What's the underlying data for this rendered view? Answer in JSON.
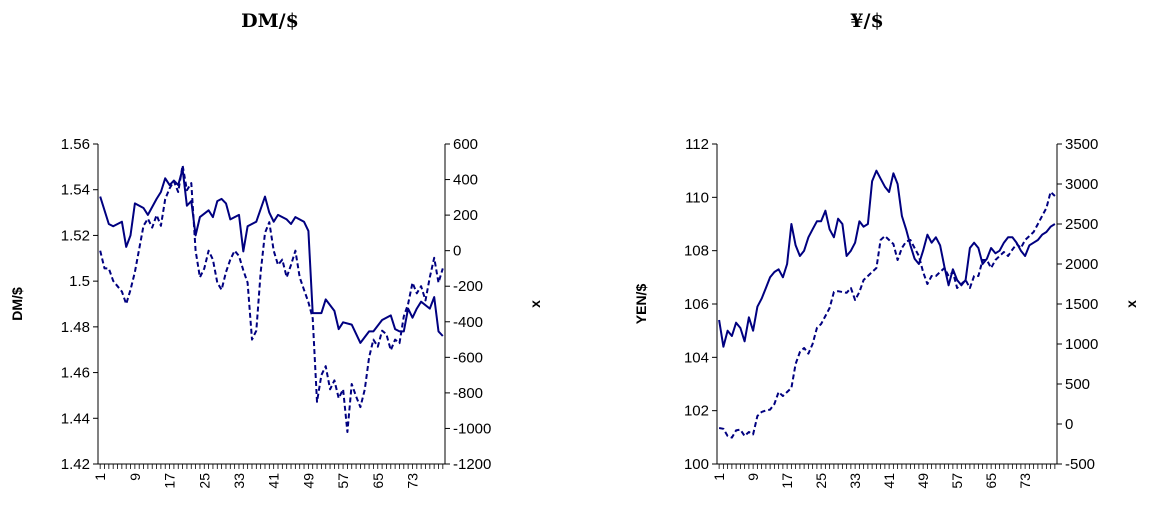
{
  "chart_data": [
    {
      "type": "line",
      "title": "DM/$",
      "ylabel": "DM/$",
      "y2label": "x",
      "xlabel": "",
      "x_ticks": [
        "1",
        "9",
        "17",
        "25",
        "33",
        "41",
        "49",
        "57",
        "65",
        "73"
      ],
      "y_ticks": [
        "1.56",
        "1.54",
        "1.52",
        "1.5",
        "1.48",
        "1.46",
        "1.44",
        "1.42"
      ],
      "y2_ticks": [
        "600",
        "400",
        "200",
        "0",
        "-200",
        "-400",
        "-600",
        "-800",
        "-1000",
        "-1200"
      ],
      "ylim": [
        1.42,
        1.56
      ],
      "y2lim": [
        -1200,
        600
      ],
      "xlim": [
        1,
        80
      ],
      "grid": false,
      "series": [
        {
          "axis": "left",
          "style": "solid",
          "color": "#000080",
          "x": [
            1,
            3,
            4,
            6,
            7,
            8,
            9,
            11,
            12,
            14,
            15,
            16,
            17,
            18,
            19,
            20,
            21,
            22,
            23,
            24,
            26,
            27,
            28,
            29,
            30,
            31,
            33,
            34,
            35,
            37,
            39,
            40,
            41,
            42,
            44,
            45,
            46,
            48,
            49,
            50,
            52,
            53,
            55,
            56,
            57,
            59,
            61,
            63,
            64,
            66,
            68,
            69,
            70,
            71,
            72,
            73,
            74,
            75,
            77,
            78,
            79,
            80
          ],
          "values": [
            1.537,
            1.525,
            1.524,
            1.526,
            1.515,
            1.52,
            1.534,
            1.532,
            1.529,
            1.536,
            1.539,
            1.545,
            1.542,
            1.544,
            1.542,
            1.549,
            1.533,
            1.535,
            1.52,
            1.528,
            1.531,
            1.528,
            1.535,
            1.536,
            1.534,
            1.527,
            1.529,
            1.513,
            1.524,
            1.526,
            1.537,
            1.53,
            1.526,
            1.529,
            1.527,
            1.525,
            1.528,
            1.526,
            1.522,
            1.486,
            1.486,
            1.492,
            1.487,
            1.479,
            1.482,
            1.481,
            1.473,
            1.478,
            1.478,
            1.483,
            1.485,
            1.479,
            1.478,
            1.478,
            1.488,
            1.484,
            1.488,
            1.491,
            1.488,
            1.493,
            1.478,
            1.476
          ]
        },
        {
          "axis": "right",
          "style": "dashed",
          "color": "#000080",
          "x": [
            1,
            2,
            3,
            4,
            6,
            7,
            8,
            9,
            10,
            11,
            12,
            13,
            14,
            15,
            16,
            17,
            18,
            19,
            20,
            21,
            22,
            23,
            24,
            25,
            26,
            27,
            28,
            29,
            30,
            31,
            32,
            33,
            34,
            35,
            36,
            37,
            38,
            39,
            40,
            41,
            42,
            43,
            44,
            45,
            46,
            47,
            48,
            49,
            50,
            51,
            52,
            53,
            54,
            55,
            56,
            57,
            58,
            59,
            60,
            61,
            62,
            63,
            64,
            65,
            66,
            67,
            68,
            69,
            70,
            71,
            72,
            73,
            74,
            75,
            76,
            77,
            78,
            79,
            80
          ],
          "values": [
            0,
            -100,
            -100,
            -170,
            -230,
            -300,
            -220,
            -120,
            10,
            140,
            180,
            130,
            200,
            140,
            290,
            350,
            390,
            330,
            480,
            340,
            380,
            0,
            -150,
            -100,
            0,
            -50,
            -180,
            -220,
            -120,
            -50,
            0,
            -30,
            -110,
            -180,
            -500,
            -450,
            -120,
            100,
            160,
            0,
            -80,
            -50,
            -150,
            -80,
            0,
            -150,
            -220,
            -290,
            -380,
            -850,
            -700,
            -650,
            -780,
            -730,
            -830,
            -780,
            -1020,
            -750,
            -820,
            -880,
            -780,
            -600,
            -500,
            -540,
            -450,
            -470,
            -560,
            -500,
            -520,
            -370,
            -300,
            -180,
            -240,
            -200,
            -280,
            -150,
            -40,
            -180,
            -100
          ]
        }
      ]
    },
    {
      "type": "line",
      "title": "¥/$",
      "ylabel": "YEN/$",
      "y2label": "x",
      "xlabel": "",
      "x_ticks": [
        "1",
        "9",
        "17",
        "25",
        "33",
        "41",
        "49",
        "57",
        "65",
        "73"
      ],
      "y_ticks": [
        "112",
        "110",
        "108",
        "106",
        "104",
        "102",
        "100"
      ],
      "y2_ticks": [
        "3500",
        "3000",
        "2500",
        "2000",
        "1500",
        "1000",
        "500",
        "0",
        "-500"
      ],
      "ylim": [
        100,
        112
      ],
      "y2lim": [
        -500,
        3500
      ],
      "xlim": [
        1,
        80
      ],
      "grid": false,
      "series": [
        {
          "axis": "left",
          "style": "solid",
          "color": "#000080",
          "x": [
            1,
            2,
            3,
            4,
            5,
            6,
            7,
            8,
            9,
            10,
            11,
            12,
            13,
            14,
            15,
            16,
            17,
            18,
            19,
            20,
            21,
            22,
            23,
            24,
            25,
            26,
            27,
            28,
            29,
            30,
            31,
            32,
            33,
            34,
            35,
            36,
            37,
            38,
            39,
            40,
            41,
            42,
            43,
            44,
            45,
            46,
            47,
            48,
            49,
            50,
            51,
            52,
            53,
            54,
            55,
            56,
            57,
            58,
            59,
            60,
            61,
            62,
            63,
            64,
            65,
            66,
            67,
            68,
            69,
            70,
            71,
            72,
            73,
            74,
            75,
            76,
            77,
            78,
            79,
            80
          ],
          "values": [
            105.4,
            104.4,
            105.0,
            104.8,
            105.3,
            105.1,
            104.6,
            105.5,
            105.0,
            105.9,
            106.2,
            106.6,
            107.0,
            107.2,
            107.3,
            107.0,
            107.5,
            109.0,
            108.2,
            107.8,
            108.0,
            108.5,
            108.8,
            109.1,
            109.1,
            109.5,
            108.8,
            108.5,
            109.2,
            109.0,
            107.8,
            108.0,
            108.3,
            109.1,
            108.9,
            109.0,
            110.6,
            111.0,
            110.7,
            110.4,
            110.2,
            110.9,
            110.5,
            109.3,
            108.8,
            108.2,
            107.7,
            107.5,
            108.0,
            108.6,
            108.3,
            108.5,
            108.2,
            107.4,
            106.7,
            107.3,
            106.9,
            106.7,
            106.9,
            108.1,
            108.3,
            108.1,
            107.5,
            107.7,
            108.1,
            107.9,
            108.0,
            108.3,
            108.5,
            108.5,
            108.3,
            108.0,
            107.8,
            108.2,
            108.3,
            108.4,
            108.6,
            108.7,
            108.9,
            109.0
          ]
        },
        {
          "axis": "right",
          "style": "dashed",
          "color": "#000080",
          "x": [
            1,
            2,
            3,
            4,
            5,
            6,
            7,
            8,
            9,
            10,
            11,
            12,
            13,
            14,
            15,
            16,
            17,
            18,
            19,
            20,
            21,
            22,
            23,
            24,
            25,
            26,
            27,
            28,
            29,
            30,
            31,
            32,
            33,
            34,
            35,
            36,
            37,
            38,
            39,
            40,
            41,
            42,
            43,
            44,
            45,
            46,
            47,
            48,
            49,
            50,
            51,
            52,
            53,
            54,
            55,
            56,
            57,
            58,
            59,
            60,
            61,
            62,
            63,
            64,
            65,
            66,
            67,
            68,
            69,
            70,
            71,
            72,
            73,
            74,
            75,
            76,
            77,
            78,
            79,
            80
          ],
          "values": [
            -50,
            -60,
            -150,
            -170,
            -80,
            -70,
            -150,
            -100,
            -130,
            100,
            150,
            170,
            180,
            250,
            400,
            350,
            400,
            450,
            750,
            900,
            950,
            880,
            1000,
            1200,
            1250,
            1350,
            1450,
            1650,
            1660,
            1650,
            1640,
            1700,
            1550,
            1650,
            1800,
            1850,
            1900,
            1950,
            2300,
            2350,
            2300,
            2250,
            2050,
            2200,
            2280,
            2300,
            2200,
            2100,
            1900,
            1750,
            1850,
            1850,
            1900,
            1950,
            1850,
            1900,
            1700,
            1750,
            1800,
            1700,
            1850,
            1850,
            2050,
            2050,
            1950,
            2050,
            2100,
            2150,
            2100,
            2180,
            2250,
            2200,
            2300,
            2350,
            2400,
            2500,
            2600,
            2700,
            2900,
            2850
          ]
        }
      ]
    }
  ]
}
